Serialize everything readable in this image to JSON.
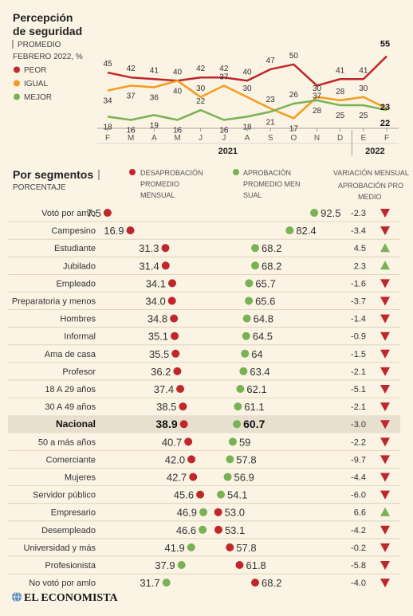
{
  "header": {
    "title_line1": "Percepción",
    "title_line2": "de seguridad",
    "subtitle_line1": "PROMEDIO",
    "subtitle_line2": "FEBRERO 2022, %"
  },
  "chart_data": [
    {
      "type": "line",
      "title": "Percepción de seguridad",
      "subtitle": "PROMEDIO FEBRERO 2022, %",
      "categories": [
        "F",
        "M",
        "A",
        "M",
        "J",
        "J",
        "A",
        "S",
        "O",
        "N",
        "D",
        "E",
        "F"
      ],
      "year_labels": {
        "2021": "2021",
        "2022": "2022"
      },
      "series": [
        {
          "name": "PEOR",
          "color": "#c0272d",
          "values": [
            45,
            42,
            41,
            40,
            42,
            42,
            40,
            47,
            50,
            37,
            41,
            41,
            55
          ]
        },
        {
          "name": "IGUAL",
          "color": "#f39c1f",
          "values": [
            34,
            37,
            36,
            40,
            30,
            37,
            30,
            23,
            17,
            30,
            28,
            30,
            23
          ]
        },
        {
          "name": "MEJOR",
          "color": "#78b254",
          "values": [
            18,
            16,
            19,
            16,
            22,
            16,
            18,
            21,
            26,
            28,
            25,
            25,
            22
          ]
        }
      ],
      "legend_position": "left"
    },
    {
      "type": "dot",
      "title": "Por segmentos",
      "subtitle": "PORCENTAJE",
      "legend": {
        "desaprobacion": "DESAPROBACIÓN PROMEDIO MENSUAL",
        "aprobacion": "APROBACIÓN PROMEDIO MENSUAL",
        "variacion": "VARIACIÓN MENSUAL APROBACIÓN PROMEDIO"
      },
      "colors": {
        "desaprobacion": "#c0272d",
        "aprobacion": "#78b254",
        "down": "#c0272d",
        "up": "#78b254"
      },
      "rows": [
        {
          "segment": "Votó por amlo",
          "desaprobacion": "7.5",
          "aprobacion": "92.5",
          "variacion": "-2.3"
        },
        {
          "segment": "Campesino",
          "desaprobacion": "16.9",
          "aprobacion": "82.4",
          "variacion": "-3.4"
        },
        {
          "segment": "Estudiante",
          "desaprobacion": "31.3",
          "aprobacion": "68.2",
          "variacion": "4.5"
        },
        {
          "segment": "Jubilado",
          "desaprobacion": "31.4",
          "aprobacion": "68.2",
          "variacion": "2.3"
        },
        {
          "segment": "Empleado",
          "desaprobacion": "34.1",
          "aprobacion": "65.7",
          "variacion": "-1.6"
        },
        {
          "segment": "Preparatoria y menos",
          "desaprobacion": "34.0",
          "aprobacion": "65.6",
          "variacion": "-3.7"
        },
        {
          "segment": "Hombres",
          "desaprobacion": "34.8",
          "aprobacion": "64.8",
          "variacion": "-1.4"
        },
        {
          "segment": "Informal",
          "desaprobacion": "35.1",
          "aprobacion": "64.5",
          "variacion": "-0.9"
        },
        {
          "segment": "Ama de casa",
          "desaprobacion": "35.5",
          "aprobacion": "64",
          "variacion": "-1.5"
        },
        {
          "segment": "Profesor",
          "desaprobacion": "36.2",
          "aprobacion": "63.4",
          "variacion": "-2.1"
        },
        {
          "segment": "18 A 29 años",
          "desaprobacion": "37.4",
          "aprobacion": "62.1",
          "variacion": "-5.1"
        },
        {
          "segment": "30 A 49 años",
          "desaprobacion": "38.5",
          "aprobacion": "61.1",
          "variacion": "-2.1"
        },
        {
          "segment": "Nacional",
          "desaprobacion": "38.9",
          "aprobacion": "60.7",
          "variacion": "-3.0",
          "highlight": true
        },
        {
          "segment": "50 a más años",
          "desaprobacion": "40.7",
          "aprobacion": "59",
          "variacion": "-2.2"
        },
        {
          "segment": "Comerciante",
          "desaprobacion": "42.0",
          "aprobacion": "57.8",
          "variacion": "-9.7"
        },
        {
          "segment": "Mujeres",
          "desaprobacion": "42.7",
          "aprobacion": "56.9",
          "variacion": "-4.4"
        },
        {
          "segment": "Servidor público",
          "desaprobacion": "45.6",
          "aprobacion": "54.1",
          "variacion": "-6.0"
        },
        {
          "segment": "Empresario",
          "desaprobacion": "53.0",
          "aprobacion": "46.9",
          "variacion": "6.6"
        },
        {
          "segment": "Desempleado",
          "desaprobacion": "53.1",
          "aprobacion": "46.6",
          "variacion": "-4.2"
        },
        {
          "segment": "Universidad y más",
          "desaprobacion": "57.8",
          "aprobacion": "41.9",
          "variacion": "-0.2"
        },
        {
          "segment": "Profesionista",
          "desaprobacion": "61.8",
          "aprobacion": "37.9",
          "variacion": "-5.8"
        },
        {
          "segment": "No votó por amlo",
          "desaprobacion": "68.2",
          "aprobacion": "31.7",
          "variacion": "-4.0"
        }
      ]
    }
  ],
  "footer": {
    "brand": "EL ECONOMISTA",
    "brand_icon": "globe-icon"
  }
}
